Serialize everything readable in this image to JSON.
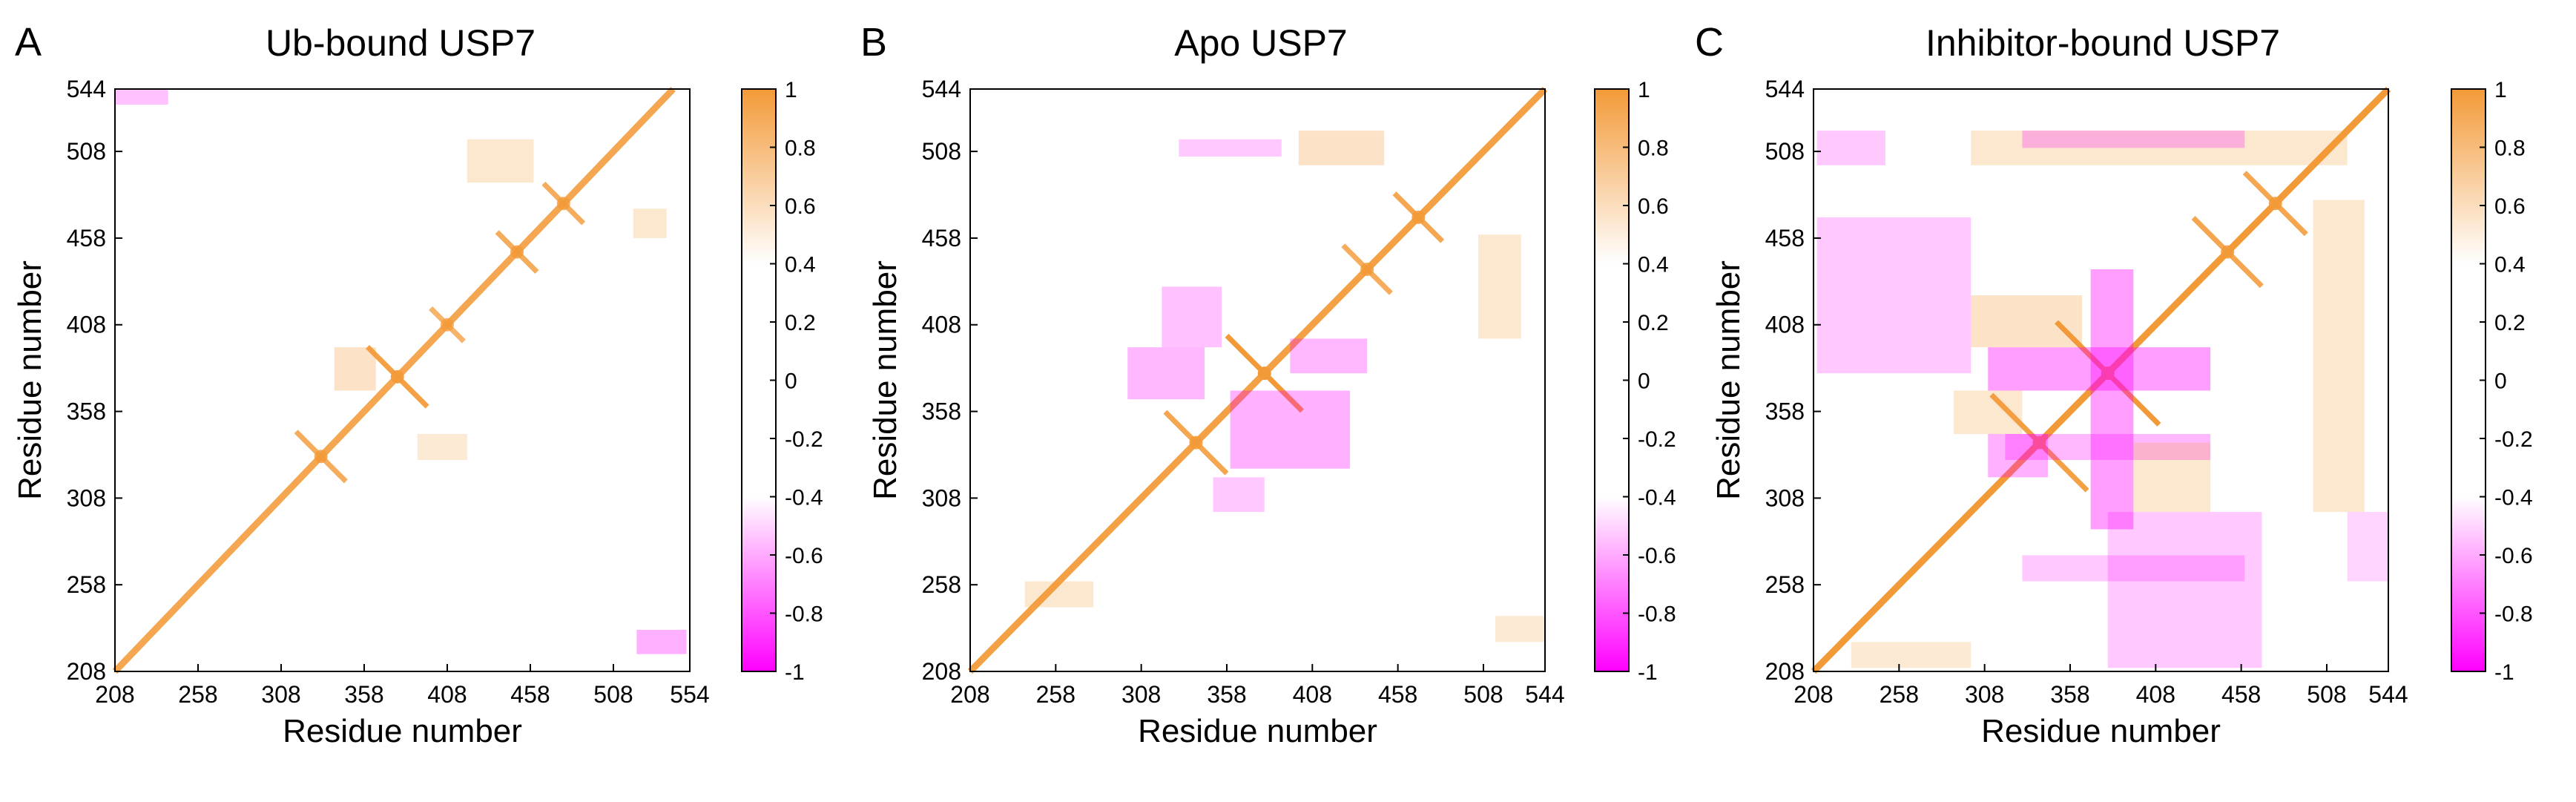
{
  "figure": {
    "panels": [
      "A",
      "B",
      "C"
    ]
  },
  "chart_data": [
    {
      "panel_label": "A",
      "type": "heatmap",
      "title": "Ub-bound USP7",
      "xlabel": "Residue number",
      "ylabel": "Residue number",
      "x_ticks": [
        208,
        258,
        308,
        358,
        408,
        458,
        508,
        554
      ],
      "y_ticks": [
        208,
        258,
        308,
        358,
        408,
        458,
        508,
        544
      ],
      "xlim": [
        208,
        554
      ],
      "ylim": [
        208,
        544
      ],
      "colorbar": {
        "min": -1,
        "max": 1,
        "ticks": [
          1,
          0.8,
          0.6,
          0.4,
          0.2,
          0,
          -0.2,
          -0.4,
          -0.6,
          -0.8,
          -1
        ]
      },
      "colors": {
        "positive": "#f39a38",
        "negative": "#ff00ff",
        "neutral": "#ffffff"
      },
      "features": [
        {
          "kind": "diagonal",
          "value": 0.85
        },
        {
          "kind": "cross",
          "x": 378,
          "y": 378,
          "value": 0.9,
          "spread": 18
        },
        {
          "kind": "cross",
          "x": 332,
          "y": 332,
          "value": 0.8,
          "spread": 15
        },
        {
          "kind": "cross",
          "x": 408,
          "y": 408,
          "value": 0.75,
          "spread": 10
        },
        {
          "kind": "cross",
          "x": 450,
          "y": 450,
          "value": 0.8,
          "spread": 12
        },
        {
          "kind": "cross",
          "x": 478,
          "y": 478,
          "value": 0.8,
          "spread": 12
        },
        {
          "kind": "block",
          "x": [
            340,
            365
          ],
          "y": [
            370,
            395
          ],
          "value": 0.55
        },
        {
          "kind": "block",
          "x": [
            390,
            420
          ],
          "y": [
            330,
            345
          ],
          "value": 0.45
        },
        {
          "kind": "block",
          "x": [
            420,
            460
          ],
          "y": [
            490,
            515
          ],
          "value": 0.5
        },
        {
          "kind": "block",
          "x": [
            520,
            540
          ],
          "y": [
            458,
            475
          ],
          "value": 0.5
        },
        {
          "kind": "block",
          "x": [
            522,
            552
          ],
          "y": [
            218,
            232
          ],
          "value": -0.6
        },
        {
          "kind": "block",
          "x": [
            208,
            240
          ],
          "y": [
            535,
            544
          ],
          "value": -0.5
        }
      ]
    },
    {
      "panel_label": "B",
      "type": "heatmap",
      "title": "Apo USP7",
      "xlabel": "Residue number",
      "ylabel": "Residue number",
      "x_ticks": [
        208,
        258,
        308,
        358,
        408,
        458,
        508,
        544
      ],
      "y_ticks": [
        208,
        258,
        308,
        358,
        408,
        458,
        508,
        544
      ],
      "xlim": [
        208,
        544
      ],
      "ylim": [
        208,
        544
      ],
      "colorbar": {
        "min": -1,
        "max": 1,
        "ticks": [
          1,
          0.8,
          0.6,
          0.4,
          0.2,
          0,
          -0.2,
          -0.4,
          -0.6,
          -0.8,
          -1
        ]
      },
      "colors": {
        "positive": "#f39a38",
        "negative": "#ff00ff",
        "neutral": "#ffffff"
      },
      "features": [
        {
          "kind": "diagonal",
          "value": 0.9
        },
        {
          "kind": "cross",
          "x": 380,
          "y": 380,
          "value": 0.95,
          "spread": 22
        },
        {
          "kind": "cross",
          "x": 340,
          "y": 340,
          "value": 0.85,
          "spread": 18
        },
        {
          "kind": "cross",
          "x": 440,
          "y": 440,
          "value": 0.8,
          "spread": 14
        },
        {
          "kind": "cross",
          "x": 470,
          "y": 470,
          "value": 0.85,
          "spread": 14
        },
        {
          "kind": "block",
          "x": [
            300,
            345
          ],
          "y": [
            365,
            395
          ],
          "value": -0.55
        },
        {
          "kind": "block",
          "x": [
            360,
            430
          ],
          "y": [
            325,
            370
          ],
          "value": -0.6
        },
        {
          "kind": "block",
          "x": [
            395,
            440
          ],
          "y": [
            380,
            400
          ],
          "value": -0.55
        },
        {
          "kind": "block",
          "x": [
            350,
            380
          ],
          "y": [
            300,
            320
          ],
          "value": -0.45
        },
        {
          "kind": "block",
          "x": [
            320,
            355
          ],
          "y": [
            395,
            430
          ],
          "value": -0.5
        },
        {
          "kind": "block",
          "x": [
            400,
            450
          ],
          "y": [
            500,
            520
          ],
          "value": 0.55
        },
        {
          "kind": "block",
          "x": [
            330,
            390
          ],
          "y": [
            505,
            515
          ],
          "value": -0.45
        },
        {
          "kind": "block",
          "x": [
            505,
            530
          ],
          "y": [
            400,
            460
          ],
          "value": 0.5
        },
        {
          "kind": "block",
          "x": [
            240,
            280
          ],
          "y": [
            245,
            260
          ],
          "value": 0.5
        },
        {
          "kind": "block",
          "x": [
            515,
            544
          ],
          "y": [
            225,
            240
          ],
          "value": 0.45
        }
      ]
    },
    {
      "panel_label": "C",
      "type": "heatmap",
      "title": "Inhibitor-bound USP7",
      "xlabel": "Residue number",
      "ylabel": "Residue number",
      "x_ticks": [
        208,
        258,
        308,
        358,
        408,
        458,
        508,
        544
      ],
      "y_ticks": [
        208,
        258,
        308,
        358,
        408,
        458,
        508,
        544
      ],
      "xlim": [
        208,
        544
      ],
      "ylim": [
        208,
        544
      ],
      "colorbar": {
        "min": -1,
        "max": 1,
        "ticks": [
          1,
          0.8,
          0.6,
          0.4,
          0.2,
          0,
          -0.2,
          -0.4,
          -0.6,
          -0.8,
          -1
        ]
      },
      "colors": {
        "positive": "#f39a38",
        "negative": "#ff00ff",
        "neutral": "#ffffff"
      },
      "features": [
        {
          "kind": "diagonal",
          "value": 0.95
        },
        {
          "kind": "cross",
          "x": 380,
          "y": 380,
          "value": 0.95,
          "spread": 30
        },
        {
          "kind": "cross",
          "x": 340,
          "y": 340,
          "value": 0.9,
          "spread": 28
        },
        {
          "kind": "cross",
          "x": 450,
          "y": 450,
          "value": 0.85,
          "spread": 20
        },
        {
          "kind": "cross",
          "x": 478,
          "y": 478,
          "value": 0.85,
          "spread": 18
        },
        {
          "kind": "block",
          "x": [
            310,
            440
          ],
          "y": [
            370,
            395
          ],
          "value": -0.7
        },
        {
          "kind": "block",
          "x": [
            370,
            395
          ],
          "y": [
            290,
            440
          ],
          "value": -0.7
        },
        {
          "kind": "block",
          "x": [
            310,
            345
          ],
          "y": [
            320,
            345
          ],
          "value": -0.6
        },
        {
          "kind": "block",
          "x": [
            320,
            440
          ],
          "y": [
            330,
            345
          ],
          "value": -0.55
        },
        {
          "kind": "block",
          "x": [
            300,
            365
          ],
          "y": [
            395,
            425
          ],
          "value": 0.55
        },
        {
          "kind": "block",
          "x": [
            395,
            440
          ],
          "y": [
            300,
            340
          ],
          "value": 0.5
        },
        {
          "kind": "block",
          "x": [
            290,
            330
          ],
          "y": [
            345,
            370
          ],
          "value": 0.5
        },
        {
          "kind": "block",
          "x": [
            210,
            300
          ],
          "y": [
            380,
            470
          ],
          "value": -0.45
        },
        {
          "kind": "block",
          "x": [
            380,
            470
          ],
          "y": [
            210,
            300
          ],
          "value": -0.45
        },
        {
          "kind": "block",
          "x": [
            300,
            520
          ],
          "y": [
            500,
            520
          ],
          "value": 0.5
        },
        {
          "kind": "block",
          "x": [
            330,
            460
          ],
          "y": [
            510,
            520
          ],
          "value": -0.5
        },
        {
          "kind": "block",
          "x": [
            210,
            250
          ],
          "y": [
            500,
            520
          ],
          "value": -0.45
        },
        {
          "kind": "block",
          "x": [
            500,
            530
          ],
          "y": [
            300,
            480
          ],
          "value": 0.5
        },
        {
          "kind": "block",
          "x": [
            330,
            460
          ],
          "y": [
            260,
            275
          ],
          "value": -0.45
        },
        {
          "kind": "block",
          "x": [
            230,
            300
          ],
          "y": [
            210,
            225
          ],
          "value": 0.45
        },
        {
          "kind": "block",
          "x": [
            520,
            544
          ],
          "y": [
            260,
            300
          ],
          "value": -0.4
        }
      ]
    }
  ]
}
